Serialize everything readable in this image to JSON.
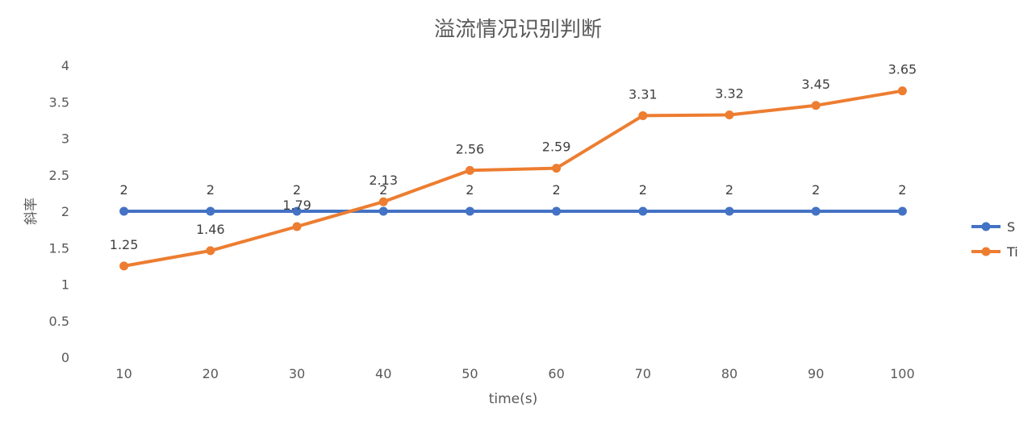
{
  "chart_data": {
    "type": "line",
    "title": "溢流情况识别判断",
    "xlabel": "time(s)",
    "ylabel": "斜率",
    "categories": [
      "10",
      "20",
      "30",
      "40",
      "50",
      "60",
      "70",
      "80",
      "90",
      "100"
    ],
    "ylim": [
      0,
      4
    ],
    "yticks": [
      "0",
      "0.5",
      "1",
      "1.5",
      "2",
      "2.5",
      "3",
      "3.5",
      "4"
    ],
    "grid": false,
    "legend": "right",
    "series": [
      {
        "name": "S",
        "color": "#4472C4",
        "values": [
          2,
          2,
          2,
          2,
          2,
          2,
          2,
          2,
          2,
          2
        ],
        "labels": [
          "2",
          "2",
          "2",
          "2",
          "2",
          "2",
          "2",
          "2",
          "2",
          "2"
        ]
      },
      {
        "name": "Ti",
        "color": "#ED7D31",
        "values": [
          1.25,
          1.46,
          1.79,
          2.13,
          2.56,
          2.59,
          3.31,
          3.32,
          3.45,
          3.65
        ],
        "labels": [
          "1.25",
          "1.46",
          "1.79",
          "2.13",
          "2.56",
          "2.59",
          "3.31",
          "3.32",
          "3.45",
          "3.65"
        ]
      }
    ]
  }
}
